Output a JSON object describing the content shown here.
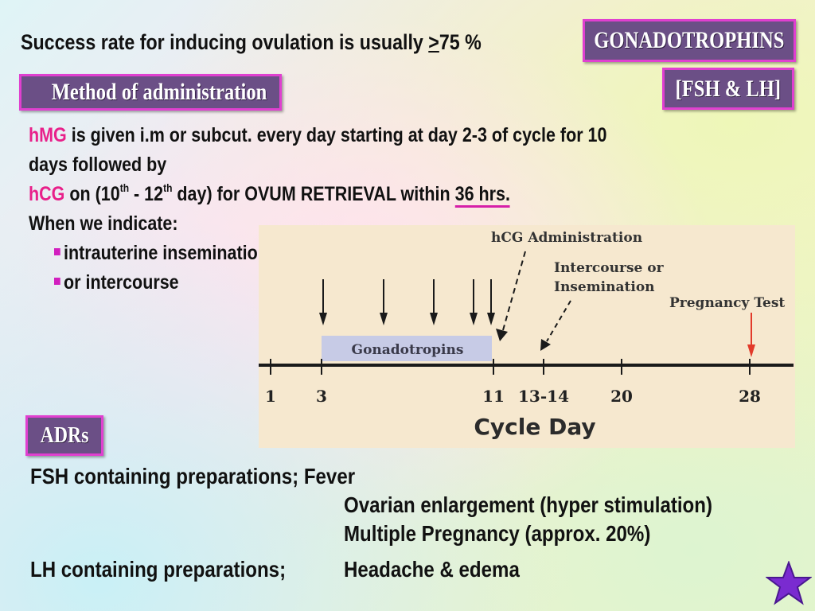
{
  "header": {
    "title_prefix": "Success rate for inducing ovulation is usually ",
    "title_ge": ">",
    "title_suffix": "75 %",
    "tag_gonadotrophins": "GONADOTROPHINS",
    "tag_fsh_lh": "[FSH & LH]"
  },
  "method": {
    "heading": "Method of administration",
    "hmg_abbr": "hMG",
    "hmg_text": " is given i.m  or subcut. every day starting at day 2-3 of cycle  for 10",
    "hmg_text2": "days followed by",
    "hcg_abbr": "hCG",
    "hcg_a": " on (10",
    "sup_th1": "th",
    "hcg_b": " - 12",
    "sup_th2": "th",
    "hcg_c": " day) for OVUM RETRIEVAL within ",
    "hcg_hrs": "36 hrs.",
    "indicate": "When we indicate:",
    "bullets": [
      "intrauterine insemination",
      "or intercourse"
    ]
  },
  "chart_data": {
    "type": "timeline",
    "xlabel": "Cycle Day",
    "ticks": [
      "1",
      "3",
      "11",
      "13-14",
      "20",
      "28"
    ],
    "period": {
      "label": "Gonadotropins",
      "start": 3,
      "end": 11
    },
    "injection_arrows": 5,
    "annotations": [
      "hCG Administration",
      "Intercourse or",
      "Insemination",
      "Pregnancy Test"
    ],
    "colors": {
      "bar": "#c7cbe6",
      "pregnancy_arrow": "#e23a2a",
      "background": "#f6e8cf"
    }
  },
  "adrs": {
    "heading": "ADRs",
    "fsh_label": "FSH containing preparations;  Fever",
    "fsh_items": [
      "Ovarian enlargement (hyper stimulation)",
      "Multiple Pregnancy (approx. 20%)"
    ],
    "lh_label": "LH containing preparations;",
    "lh_item": "Headache  &  edema"
  },
  "icons": {
    "star": "star-icon"
  }
}
